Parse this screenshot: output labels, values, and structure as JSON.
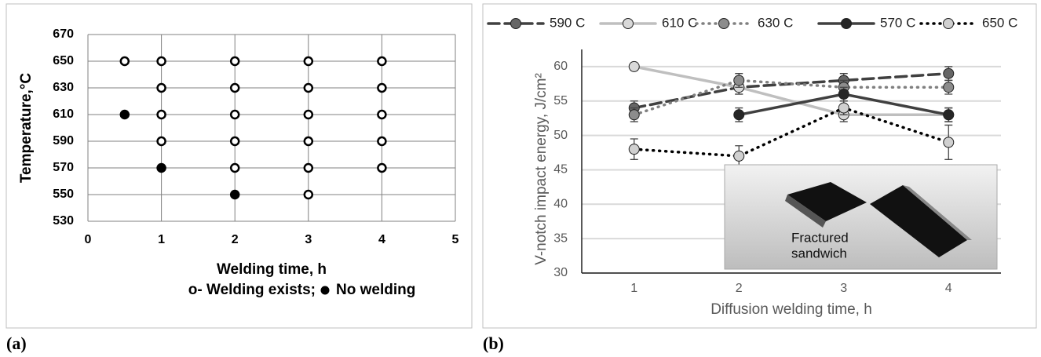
{
  "chart_data": [
    {
      "type": "scatter",
      "label": "(a)",
      "xlabel": "Welding time, h",
      "ylabel": "Temperature,°C",
      "xlim": [
        0,
        5
      ],
      "ylim": [
        530,
        670
      ],
      "xticks": [
        0,
        1,
        2,
        3,
        4,
        5
      ],
      "yticks": [
        530,
        550,
        570,
        590,
        610,
        630,
        650,
        670
      ],
      "grid": true,
      "series": [
        {
          "name": "o- Welding exists;",
          "marker": "open",
          "color": "#000000",
          "x": [
            0.5,
            1,
            1,
            1,
            1,
            2,
            2,
            2,
            2,
            2,
            3,
            3,
            3,
            3,
            3,
            3,
            4,
            4,
            4,
            4,
            4
          ],
          "y": [
            650,
            650,
            630,
            610,
            590,
            650,
            630,
            610,
            590,
            570,
            650,
            630,
            610,
            590,
            570,
            550,
            650,
            630,
            610,
            590,
            570
          ]
        },
        {
          "name": "No welding",
          "marker": "filled",
          "color": "#000000",
          "x": [
            0.5,
            1,
            2
          ],
          "y": [
            610,
            570,
            550
          ]
        }
      ]
    },
    {
      "type": "line",
      "label": "(b)",
      "xlabel": "Diffusion welding time, h",
      "ylabel": "V-notch impact energy, J/cm²",
      "categories": [
        "1",
        "2",
        "3",
        "4"
      ],
      "ylim": [
        30,
        62.5
      ],
      "yticks": [
        30,
        35,
        40,
        45,
        50,
        55,
        60
      ],
      "grid": true,
      "legend": "top",
      "annotations": [
        "Fractured",
        "sandwich"
      ],
      "series": [
        {
          "name": "590 C",
          "color": "#404040",
          "marker_color": "#666666",
          "dash": "dashed",
          "values": [
            54,
            57,
            58,
            59
          ],
          "errors": [
            1,
            1,
            1,
            1
          ]
        },
        {
          "name": "610 C",
          "color": "#bfbfbf",
          "marker_color": "#d9d9d9",
          "dash": "solid",
          "values": [
            60,
            57,
            53,
            53
          ],
          "errors": [
            0.5,
            1,
            1,
            1
          ]
        },
        {
          "name": "630 C",
          "color": "#808080",
          "marker_color": "#8c8c8c",
          "dash": "dotted",
          "values": [
            53,
            58,
            57,
            57
          ],
          "errors": [
            1,
            1,
            1,
            1
          ]
        },
        {
          "name": "570 C",
          "color": "#404040",
          "marker_color": "#262626",
          "dash": "solid",
          "values": [
            null,
            53,
            56,
            53
          ],
          "errors": [
            null,
            1,
            1,
            1
          ]
        },
        {
          "name": "650 C",
          "color": "#000000",
          "marker_color": "#d0d0d0",
          "dash": "dotted",
          "values": [
            48,
            47,
            54,
            49
          ],
          "errors": [
            1.5,
            1.5,
            1,
            2.5
          ]
        }
      ]
    }
  ]
}
